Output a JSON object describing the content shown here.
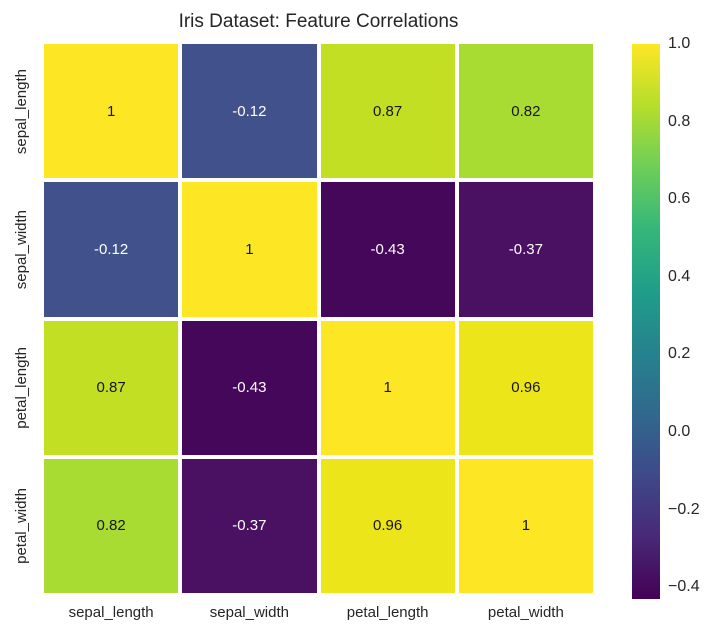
{
  "chart_data": {
    "type": "heatmap",
    "title": "Iris Dataset: Feature Correlations",
    "categories": [
      "sepal_length",
      "sepal_width",
      "petal_length",
      "petal_width"
    ],
    "x_tick_labels": [
      "sepal_length",
      "sepal_width",
      "petal_length",
      "petal_width"
    ],
    "y_tick_labels": [
      "sepal_length",
      "sepal_width",
      "petal_length",
      "petal_width"
    ],
    "matrix": [
      [
        1,
        -0.12,
        0.87,
        0.82
      ],
      [
        -0.12,
        1,
        -0.43,
        -0.37
      ],
      [
        0.87,
        -0.43,
        1,
        0.96
      ],
      [
        0.82,
        -0.37,
        0.96,
        1
      ]
    ],
    "annotations": [
      [
        "1",
        "-0.12",
        "0.87",
        "0.82"
      ],
      [
        "-0.12",
        "1",
        "-0.43",
        "-0.37"
      ],
      [
        "0.87",
        "-0.43",
        "1",
        "0.96"
      ],
      [
        "0.82",
        "-0.37",
        "0.96",
        "1"
      ]
    ],
    "cell_colors": [
      [
        "#fde725",
        "#41518b",
        "#c2df23",
        "#a8dc32"
      ],
      [
        "#41518b",
        "#fde725",
        "#45075a",
        "#4a1163"
      ],
      [
        "#c2df23",
        "#45075a",
        "#fde725",
        "#ebe51a"
      ],
      [
        "#a8dc32",
        "#4a1163",
        "#ebe51a",
        "#fde725"
      ]
    ],
    "cell_text_colors": [
      [
        "#161616",
        "#ffffff",
        "#161616",
        "#161616"
      ],
      [
        "#ffffff",
        "#161616",
        "#ffffff",
        "#ffffff"
      ],
      [
        "#161616",
        "#ffffff",
        "#161616",
        "#161616"
      ],
      [
        "#161616",
        "#ffffff",
        "#161616",
        "#161616"
      ]
    ],
    "colormap": "viridis",
    "vmin": -0.43,
    "vmax": 1.0,
    "grid_on": false,
    "colorbar": {
      "position": "right",
      "gradient_stops_top_to_bottom": [
        "#fde725",
        "#b5de2b",
        "#6ece58",
        "#35b779",
        "#1f9e89",
        "#26828e",
        "#31688e",
        "#3e4989",
        "#482878",
        "#440154"
      ],
      "ticks": [
        {
          "value": 1.0,
          "label": "1.0"
        },
        {
          "value": 0.8,
          "label": "0.8"
        },
        {
          "value": 0.6,
          "label": "0.6"
        },
        {
          "value": 0.4,
          "label": "0.4"
        },
        {
          "value": 0.2,
          "label": "0.2"
        },
        {
          "value": 0.0,
          "label": "0.0"
        },
        {
          "value": -0.2,
          "label": "−0.2"
        },
        {
          "value": -0.4,
          "label": "−0.4"
        }
      ]
    },
    "colors": {
      "background": "#ffffff",
      "grid_line": "#ffffff",
      "title_text": "#262626",
      "tick_text": "#262626",
      "annotation_dark": "#161616",
      "annotation_light": "#ffffff"
    }
  }
}
